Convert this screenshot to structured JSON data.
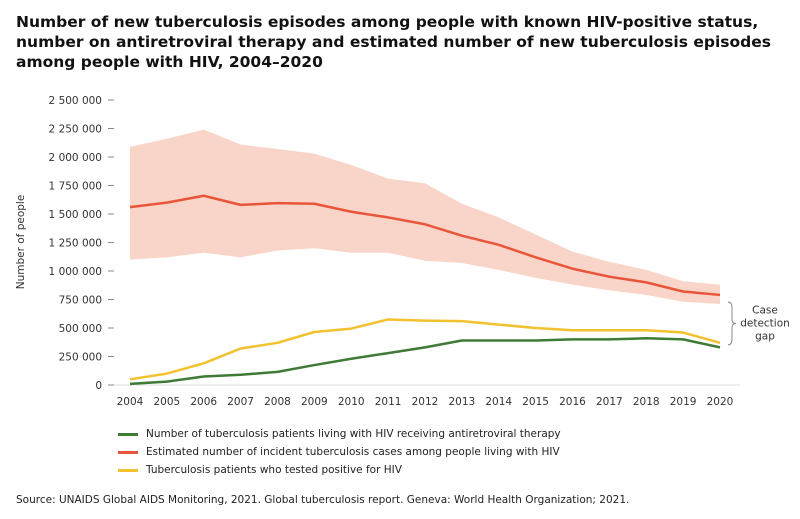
{
  "chart_data": {
    "type": "line",
    "title": "Number of new tuberculosis episodes among people with known HIV-positive status, number on antiretroviral therapy and estimated number of new tuberculosis episodes among people with HIV, 2004–2020",
    "ylabel": "Number of people",
    "xlabel": "",
    "ylim": [
      0,
      2500000
    ],
    "yticks": [
      0,
      250000,
      500000,
      750000,
      1000000,
      1250000,
      1500000,
      1750000,
      2000000,
      2250000,
      2500000
    ],
    "ytick_labels": [
      "0",
      "250 000",
      "500 000",
      "750 000",
      "1 000 000",
      "1 250 000",
      "1 500 000",
      "1 750 000",
      "2 000 000",
      "2 250 000",
      "2 500 000"
    ],
    "x": [
      "2004",
      "2005",
      "2006",
      "2007",
      "2008",
      "2009",
      "2010",
      "2011",
      "2012",
      "2013",
      "2014",
      "2015",
      "2016",
      "2017",
      "2018",
      "2019",
      "2020"
    ],
    "grid": false,
    "legend_placement": "bottom",
    "series": [
      {
        "name": "Number of tuberculosis patients living with HIV receiving antiretroviral therapy",
        "color": "#3f7a36",
        "values": [
          10000,
          30000,
          75000,
          90000,
          115000,
          175000,
          230000,
          280000,
          330000,
          390000,
          390000,
          390000,
          400000,
          400000,
          410000,
          400000,
          330000
        ]
      },
      {
        "name": "Estimated number of incident tuberculosis cases among people living with HIV",
        "color": "#e9553a",
        "values": [
          1560000,
          1600000,
          1660000,
          1580000,
          1595000,
          1590000,
          1520000,
          1470000,
          1410000,
          1310000,
          1230000,
          1120000,
          1020000,
          950000,
          900000,
          820000,
          790000
        ],
        "upper": [
          2090000,
          2160000,
          2240000,
          2110000,
          2070000,
          2030000,
          1930000,
          1810000,
          1770000,
          1590000,
          1470000,
          1320000,
          1170000,
          1080000,
          1010000,
          910000,
          880000
        ],
        "lower": [
          1100000,
          1120000,
          1160000,
          1120000,
          1180000,
          1200000,
          1160000,
          1160000,
          1090000,
          1070000,
          1010000,
          940000,
          880000,
          830000,
          790000,
          730000,
          710000
        ],
        "band_color": "#f8d5c8"
      },
      {
        "name": "Tuberculosis patients who tested positive for HIV",
        "color": "#f2c12e",
        "values": [
          50000,
          100000,
          190000,
          320000,
          370000,
          465000,
          495000,
          575000,
          565000,
          560000,
          530000,
          500000,
          480000,
          480000,
          480000,
          460000,
          370000
        ]
      }
    ],
    "annotation": "Case detection gap",
    "annotation_lines": [
      "Case",
      "detection",
      "gap"
    ]
  },
  "source": "Source: UNAIDS Global AIDS Monitoring, 2021. Global tuberculosis report. Geneva: World Health Organization; 2021."
}
